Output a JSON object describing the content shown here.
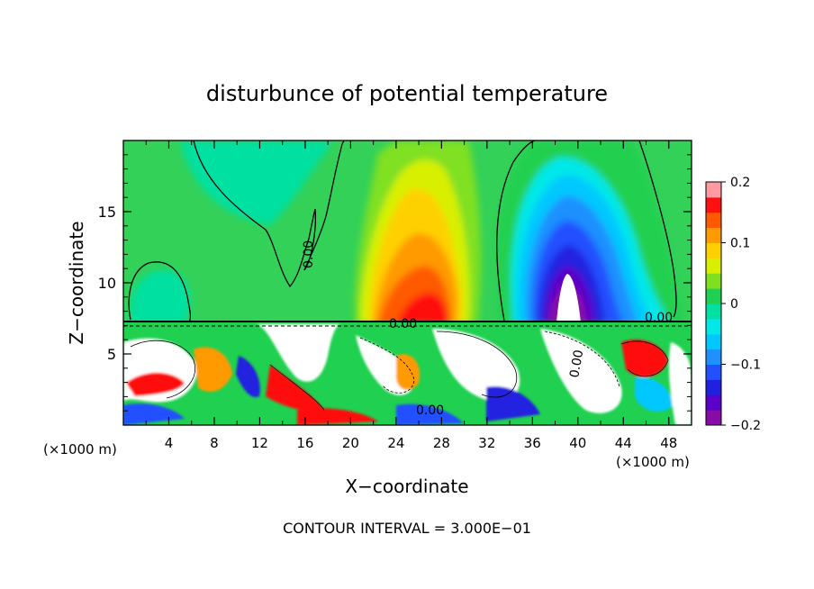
{
  "chart_data": {
    "type": "heatmap",
    "title": "disturbunce of potential temperature",
    "xlabel": "X−coordinate",
    "ylabel": "Z−coordinate",
    "x_unit_left": "(×1000 m)",
    "x_unit_right": "(×1000 m)",
    "xlim": [
      0,
      50
    ],
    "ylim": [
      0,
      20
    ],
    "x_ticks": [
      4,
      8,
      12,
      16,
      20,
      24,
      28,
      32,
      36,
      40,
      44,
      48
    ],
    "y_ticks": [
      5,
      10,
      15
    ],
    "colorbar": {
      "range": [
        -0.2,
        0.2
      ],
      "ticks": [
        0.2,
        0.1,
        0,
        -0.1,
        -0.2
      ],
      "tick_labels": [
        "0.2",
        "0.1",
        "0",
        "−0.1",
        "−0.2"
      ],
      "levels": 16,
      "colors": [
        "#8a0aa8",
        "#5a00c8",
        "#2020e0",
        "#2050ff",
        "#1e90ff",
        "#00c8ff",
        "#00e8e8",
        "#00e0a0",
        "#20d050",
        "#80e020",
        "#d8f000",
        "#ffd000",
        "#ff9a00",
        "#ff5a00",
        "#ff1010",
        "#ff9aa0"
      ]
    },
    "contour_labels": [
      "0.00",
      "0.00",
      "0.00",
      "0.00",
      "0.00"
    ],
    "footer": "CONTOUR INTERVAL = 3.000E−01"
  }
}
